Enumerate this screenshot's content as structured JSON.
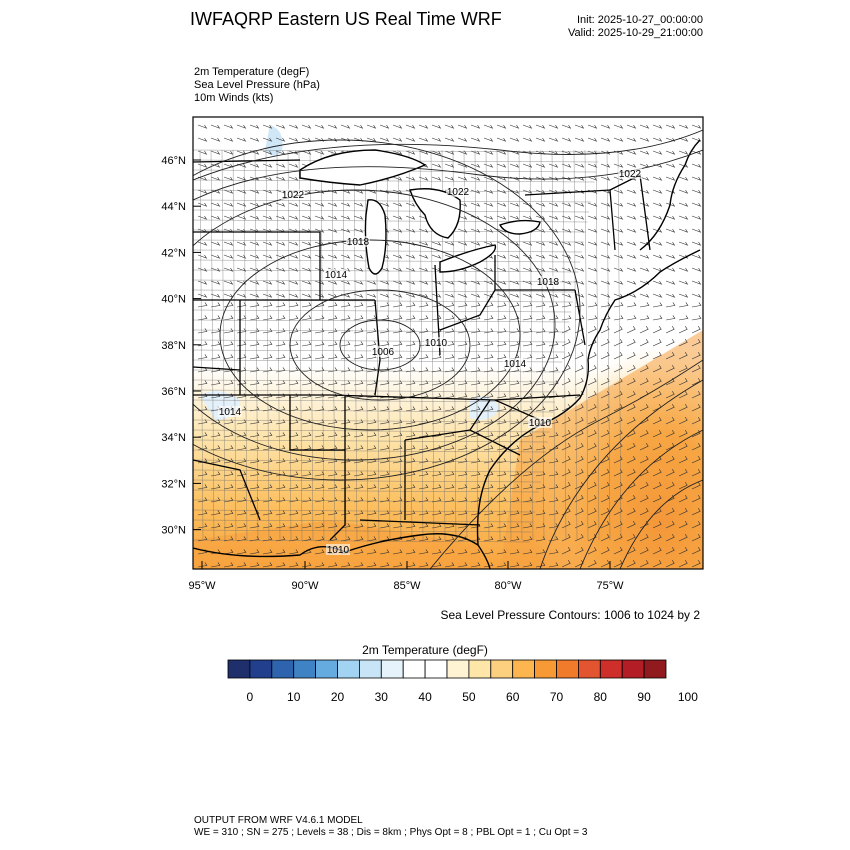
{
  "header": {
    "title": "IWFAQRP Eastern US Real Time WRF",
    "init": "Init: 2025-10-27_00:00:00",
    "valid": "Valid: 2025-10-29_21:00:00"
  },
  "fields": [
    "2m Temperature   (degF)",
    "Sea Level Pressure   (hPa)",
    "10m Winds   (kts)"
  ],
  "map": {
    "lat_ticks": [
      "46°N",
      "44°N",
      "42°N",
      "40°N",
      "38°N",
      "36°N",
      "34°N",
      "32°N",
      "30°N"
    ],
    "lon_ticks": [
      "95°W",
      "90°W",
      "85°W",
      "80°W",
      "75°W"
    ],
    "pressure_labels": [
      "1022",
      "1022",
      "1022",
      "1018",
      "1014",
      "1018",
      "1006",
      "1010",
      "1014",
      "1014",
      "1010",
      "1010"
    ],
    "contour_note": "Sea Level Pressure Contours: 1006 to 1024 by 2"
  },
  "colorbar": {
    "title": "2m Temperature  (degF)",
    "tick_labels": [
      "0",
      "10",
      "20",
      "30",
      "40",
      "50",
      "60",
      "70",
      "80",
      "90",
      "100"
    ],
    "colors": [
      "#1f2f6b",
      "#213f8c",
      "#2e63ad",
      "#3f83c4",
      "#66abe0",
      "#a3d3f2",
      "#c7e5f7",
      "#e6f3fb",
      "#ffffff",
      "#ffffff",
      "#fff3d4",
      "#fee6a8",
      "#fdd07f",
      "#fcb54f",
      "#f79a35",
      "#f07b2b",
      "#e35530",
      "#cf2f2a",
      "#b31e26",
      "#901a1d"
    ]
  },
  "footer": {
    "line1": "OUTPUT FROM WRF V4.6.1 MODEL",
    "line2": "WE = 310 ; SN = 275 ; Levels = 38 ; Dis = 8km ; Phys Opt = 8 ; PBL Opt = 1 ; Cu Opt = 3"
  }
}
